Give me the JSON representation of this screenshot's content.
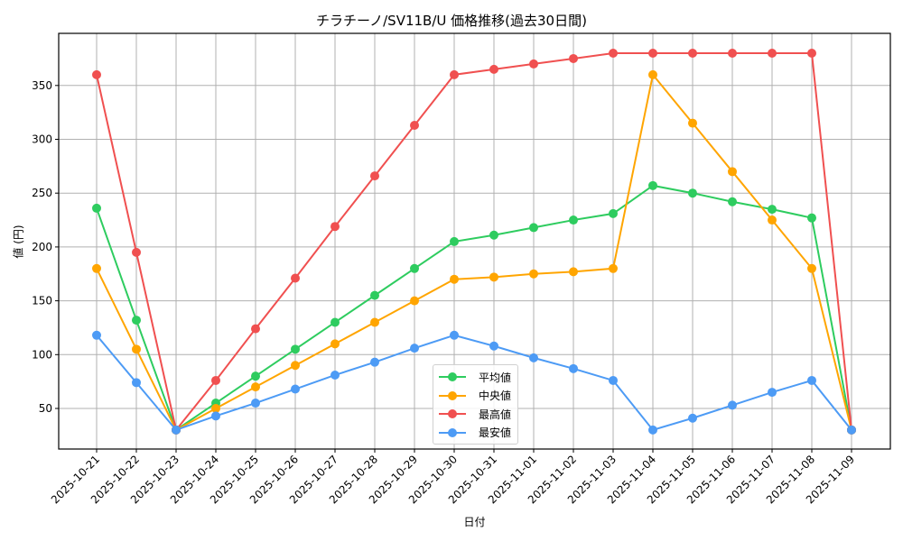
{
  "chart_data": {
    "type": "line",
    "title": "チラチーノ/SV11B/U 価格推移(過去30日間)",
    "xlabel": "日付",
    "ylabel": "値 (円)",
    "ylim": [
      12,
      398
    ],
    "yticks": [
      50,
      100,
      150,
      200,
      250,
      300,
      350
    ],
    "grid": true,
    "legend_position": "lower center",
    "categories": [
      "2025-10-21",
      "2025-10-22",
      "2025-10-23",
      "2025-10-24",
      "2025-10-25",
      "2025-10-26",
      "2025-10-27",
      "2025-10-28",
      "2025-10-29",
      "2025-10-30",
      "2025-10-31",
      "2025-11-01",
      "2025-11-02",
      "2025-11-03",
      "2025-11-04",
      "2025-11-05",
      "2025-11-06",
      "2025-11-07",
      "2025-11-08",
      "2025-11-09"
    ],
    "series": [
      {
        "name": "平均値",
        "color": "#2ecc5f",
        "values": [
          236,
          132,
          30,
          55,
          80,
          105,
          130,
          155,
          180,
          205,
          211,
          218,
          225,
          231,
          257,
          250,
          242,
          235,
          227,
          30
        ]
      },
      {
        "name": "中央値",
        "color": "#ffa500",
        "values": [
          180,
          105,
          30,
          50,
          70,
          90,
          110,
          130,
          150,
          170,
          172,
          175,
          177,
          180,
          360,
          315,
          270,
          225,
          180,
          30
        ]
      },
      {
        "name": "最高値",
        "color": "#f05050",
        "values": [
          360,
          195,
          30,
          76,
          124,
          171,
          219,
          266,
          313,
          360,
          365,
          370,
          375,
          380,
          380,
          380,
          380,
          380,
          380,
          30
        ]
      },
      {
        "name": "最安値",
        "color": "#4d9bf5",
        "values": [
          118,
          74,
          30,
          43,
          55,
          68,
          81,
          93,
          106,
          118,
          108,
          97,
          87,
          76,
          30,
          41,
          53,
          65,
          76,
          30
        ]
      }
    ]
  }
}
